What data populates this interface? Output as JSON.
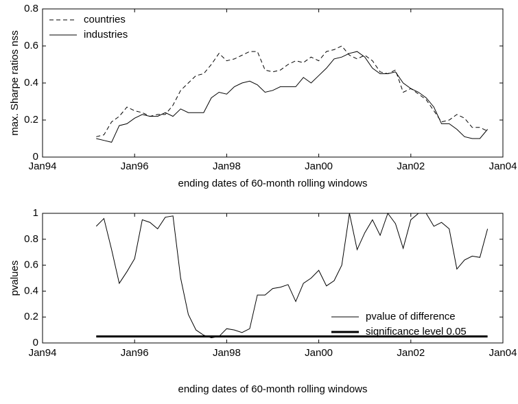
{
  "chart_data": [
    {
      "type": "line",
      "x": [
        "1995-03",
        "1995-05",
        "1995-07",
        "1995-09",
        "1995-11",
        "1996-01",
        "1996-03",
        "1996-05",
        "1996-07",
        "1996-09",
        "1996-11",
        "1997-01",
        "1997-03",
        "1997-05",
        "1997-07",
        "1997-09",
        "1997-11",
        "1998-01",
        "1998-03",
        "1998-05",
        "1998-07",
        "1998-09",
        "1998-11",
        "1999-01",
        "1999-03",
        "1999-05",
        "1999-07",
        "1999-09",
        "1999-11",
        "2000-01",
        "2000-03",
        "2000-05",
        "2000-07",
        "2000-09",
        "2000-11",
        "2001-01",
        "2001-03",
        "2001-05",
        "2001-07",
        "2001-09",
        "2001-11",
        "2002-01",
        "2002-03",
        "2002-05",
        "2002-07",
        "2002-09",
        "2002-11",
        "2003-01",
        "2003-03",
        "2003-05",
        "2003-07",
        "2003-09"
      ],
      "xlabel": "ending dates of 60-month rolling windows",
      "ylabel": "max. Sharpe ratios nss",
      "xlim": [
        "1994-01",
        "2004-01"
      ],
      "xticks": [
        {
          "value": "1994-01",
          "label": "Jan94"
        },
        {
          "value": "1996-01",
          "label": "Jan96"
        },
        {
          "value": "1998-01",
          "label": "Jan98"
        },
        {
          "value": "2000-01",
          "label": "Jan00"
        },
        {
          "value": "2002-01",
          "label": "Jan02"
        },
        {
          "value": "2004-01",
          "label": "Jan04"
        }
      ],
      "ylim": [
        0,
        0.8
      ],
      "yticks": [
        0,
        0.2,
        0.4,
        0.6,
        0.8
      ],
      "legend": "upper left",
      "series": [
        {
          "name": "countries",
          "color": "#000000",
          "linestyle": "dashed",
          "linewidth": 1,
          "values": [
            0.11,
            0.12,
            0.19,
            0.22,
            0.27,
            0.25,
            0.24,
            0.22,
            0.23,
            0.23,
            0.28,
            0.36,
            0.4,
            0.44,
            0.45,
            0.5,
            0.56,
            0.52,
            0.53,
            0.55,
            0.57,
            0.57,
            0.47,
            0.46,
            0.47,
            0.5,
            0.52,
            0.51,
            0.54,
            0.52,
            0.57,
            0.58,
            0.6,
            0.55,
            0.53,
            0.55,
            0.52,
            0.46,
            0.45,
            0.47,
            0.35,
            0.37,
            0.34,
            0.31,
            0.25,
            0.19,
            0.2,
            0.23,
            0.21,
            0.16,
            0.16,
            0.14
          ]
        },
        {
          "name": "industries",
          "color": "#000000",
          "linestyle": "solid",
          "linewidth": 1,
          "values": [
            0.1,
            0.09,
            0.08,
            0.17,
            0.18,
            0.21,
            0.23,
            0.22,
            0.22,
            0.24,
            0.22,
            0.26,
            0.24,
            0.24,
            0.24,
            0.32,
            0.35,
            0.34,
            0.38,
            0.4,
            0.41,
            0.39,
            0.35,
            0.36,
            0.38,
            0.38,
            0.38,
            0.43,
            0.4,
            0.44,
            0.48,
            0.53,
            0.54,
            0.56,
            0.57,
            0.54,
            0.48,
            0.45,
            0.45,
            0.46,
            0.4,
            0.37,
            0.35,
            0.32,
            0.27,
            0.18,
            0.18,
            0.15,
            0.11,
            0.1,
            0.1,
            0.15
          ]
        }
      ]
    },
    {
      "type": "line",
      "x": [
        "1995-03",
        "1995-05",
        "1995-07",
        "1995-09",
        "1995-11",
        "1996-01",
        "1996-03",
        "1996-05",
        "1996-07",
        "1996-09",
        "1996-11",
        "1997-01",
        "1997-03",
        "1997-05",
        "1997-07",
        "1997-09",
        "1997-11",
        "1998-01",
        "1998-03",
        "1998-05",
        "1998-07",
        "1998-09",
        "1998-11",
        "1999-01",
        "1999-03",
        "1999-05",
        "1999-07",
        "1999-09",
        "1999-11",
        "2000-01",
        "2000-03",
        "2000-05",
        "2000-07",
        "2000-09",
        "2000-11",
        "2001-01",
        "2001-03",
        "2001-05",
        "2001-07",
        "2001-09",
        "2001-11",
        "2002-01",
        "2002-03",
        "2002-05",
        "2002-07",
        "2002-09",
        "2002-11",
        "2003-01",
        "2003-03",
        "2003-05",
        "2003-07",
        "2003-09"
      ],
      "xlabel": "ending dates of 60-month rolling windows",
      "ylabel": "pvalues",
      "xlim": [
        "1994-01",
        "2004-01"
      ],
      "xticks": [
        {
          "value": "1994-01",
          "label": "Jan94"
        },
        {
          "value": "1996-01",
          "label": "Jan96"
        },
        {
          "value": "1998-01",
          "label": "Jan98"
        },
        {
          "value": "2000-01",
          "label": "Jan00"
        },
        {
          "value": "2002-01",
          "label": "Jan02"
        },
        {
          "value": "2004-01",
          "label": "Jan04"
        }
      ],
      "ylim": [
        0,
        1
      ],
      "yticks": [
        0,
        0.2,
        0.4,
        0.6,
        0.8,
        1
      ],
      "legend": "lower right",
      "series": [
        {
          "name": "pvalue of difference",
          "color": "#000000",
          "linestyle": "solid",
          "linewidth": 1,
          "values": [
            0.9,
            0.96,
            0.72,
            0.46,
            0.55,
            0.65,
            0.95,
            0.93,
            0.88,
            0.97,
            0.98,
            0.5,
            0.22,
            0.1,
            0.06,
            0.04,
            0.05,
            0.11,
            0.1,
            0.08,
            0.11,
            0.37,
            0.37,
            0.42,
            0.43,
            0.45,
            0.32,
            0.46,
            0.5,
            0.56,
            0.44,
            0.48,
            0.6,
            1.0,
            0.72,
            0.85,
            0.95,
            0.83,
            1.0,
            0.92,
            0.73,
            0.95,
            1.0,
            1.0,
            0.9,
            0.93,
            0.88,
            0.57,
            0.64,
            0.67,
            0.66,
            0.88
          ]
        },
        {
          "name": "significance level 0.05",
          "color": "#000000",
          "linestyle": "solid",
          "linewidth": 3,
          "x": [
            "1995-03",
            "2003-09"
          ],
          "values": [
            0.05,
            0.05
          ]
        }
      ]
    }
  ]
}
